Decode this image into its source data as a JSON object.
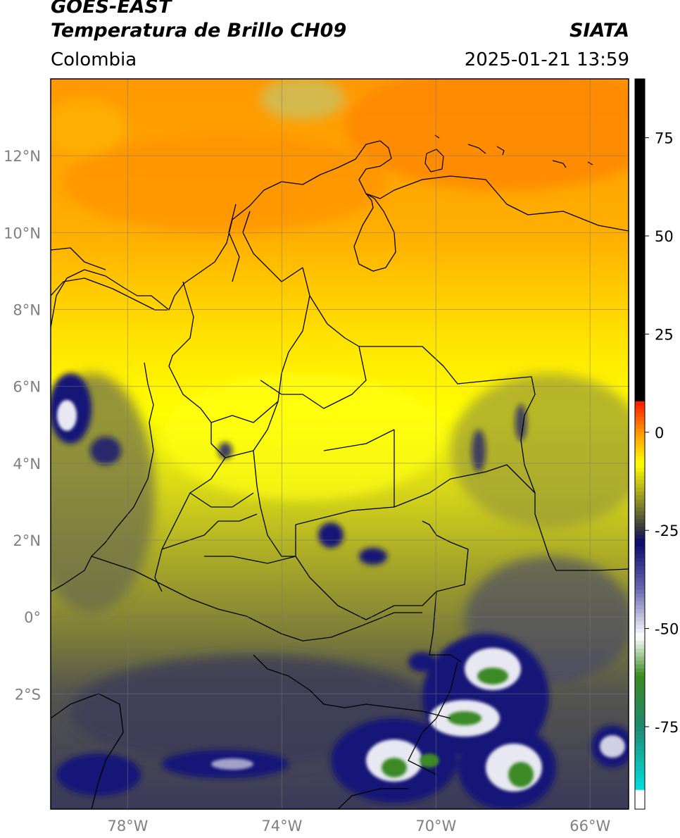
{
  "header": {
    "title_line1": "GOES-EAST",
    "title_line2": "Temperatura de Brillo CH09",
    "region": "Colombia",
    "organization": "SIATA",
    "datetime": "2025-01-21 13:59"
  },
  "map": {
    "lon_range": [
      -80,
      -65
    ],
    "lat_range": [
      -5,
      14
    ],
    "lat_ticks": [
      {
        "value": 12,
        "label": "12°N"
      },
      {
        "value": 10,
        "label": "10°N"
      },
      {
        "value": 8,
        "label": "8°N"
      },
      {
        "value": 6,
        "label": "6°N"
      },
      {
        "value": 4,
        "label": "4°N"
      },
      {
        "value": 2,
        "label": "2°N"
      },
      {
        "value": 0,
        "label": "0°"
      },
      {
        "value": -2,
        "label": "2°S"
      }
    ],
    "lon_ticks": [
      {
        "value": -78,
        "label": "78°W"
      },
      {
        "value": -74,
        "label": "74°W"
      },
      {
        "value": -70,
        "label": "70°W"
      },
      {
        "value": -66,
        "label": "66°W"
      }
    ],
    "gridlines": true
  },
  "colorbar": {
    "range": [
      -96,
      90
    ],
    "ticks": [
      {
        "value": 75,
        "label": "75"
      },
      {
        "value": 50,
        "label": "50"
      },
      {
        "value": 25,
        "label": "25"
      },
      {
        "value": 0,
        "label": "0"
      },
      {
        "value": -25,
        "label": "-25"
      },
      {
        "value": -50,
        "label": "-50"
      },
      {
        "value": -75,
        "label": "-75"
      }
    ],
    "stops": [
      {
        "value": -96,
        "color": "#ffffff"
      },
      {
        "value": -91.5,
        "color": "#ffffff"
      },
      {
        "value": -91,
        "color": "#00e0e0"
      },
      {
        "value": -75,
        "color": "#1e8a6e"
      },
      {
        "value": -62,
        "color": "#3a8a20"
      },
      {
        "value": -52,
        "color": "#ffffff"
      },
      {
        "value": -40,
        "color": "#6a6ab0"
      },
      {
        "value": -28,
        "color": "#0a0a6e"
      },
      {
        "value": -24,
        "color": "#3c3c3c"
      },
      {
        "value": -16,
        "color": "#a0a020"
      },
      {
        "value": -8,
        "color": "#ffff00"
      },
      {
        "value": 0,
        "color": "#ff9900"
      },
      {
        "value": 7.5,
        "color": "#ff1e00"
      },
      {
        "value": 8.5,
        "color": "#000000"
      },
      {
        "value": 90,
        "color": "#000000"
      }
    ]
  },
  "colors": {
    "warm_north": "#ff8a00",
    "orange": "#ffa200",
    "yellow": "#ffff00",
    "olive": "#a8a828",
    "dark_grey": "#4a4a50",
    "deep_convection": "#141478",
    "very_cold": "#ffffff",
    "coldest": "#3a8a28"
  }
}
